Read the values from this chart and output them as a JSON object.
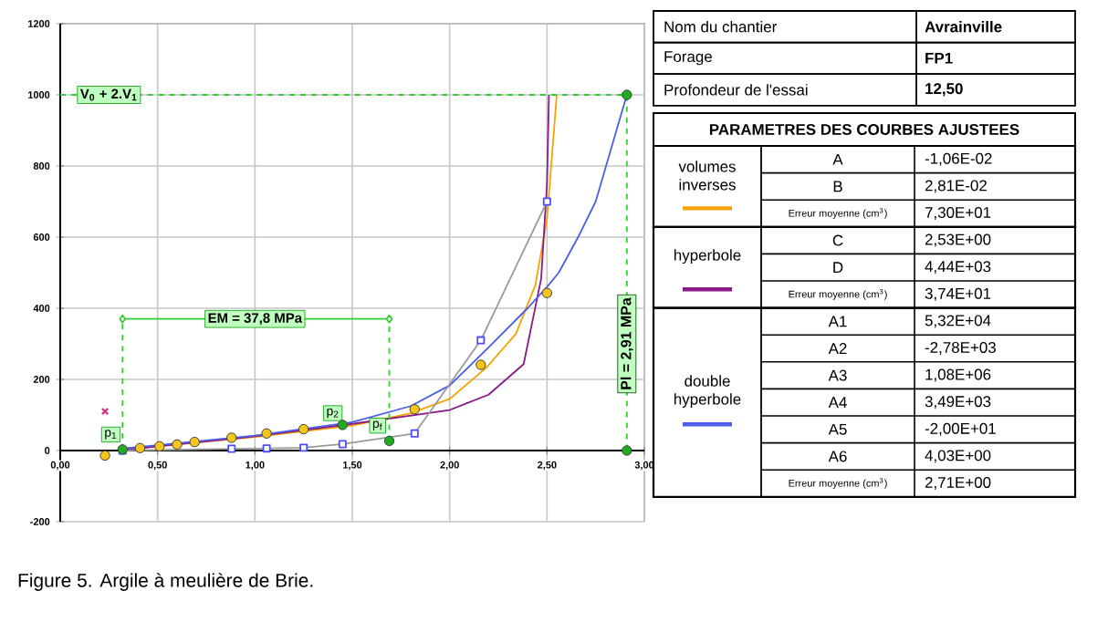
{
  "chart_data": [
    {
      "type": "line",
      "xlim": [
        0,
        3
      ],
      "ylim": [
        -200,
        1200
      ],
      "xticks": [
        {
          "value": 0,
          "label": "0,00"
        },
        {
          "value": 0.5,
          "label": "0,50"
        },
        {
          "value": 1,
          "label": "1,00"
        },
        {
          "value": 1.5,
          "label": "1,50"
        },
        {
          "value": 2,
          "label": "2,00"
        },
        {
          "value": 2.5,
          "label": "2,50"
        },
        {
          "value": 3,
          "label": "3,00"
        }
      ],
      "yticks": [
        -200,
        0,
        200,
        400,
        600,
        800,
        1000,
        1200
      ],
      "grid": true,
      "series": [
        {
          "type": "line",
          "marker": "none",
          "color": "#f4a300",
          "x": [
            0.3,
            0.5,
            1.0,
            1.5,
            1.8,
            2.0,
            2.19,
            2.34,
            2.44,
            2.5,
            2.55
          ],
          "values": [
            0,
            12,
            38,
            70,
            105,
            145,
            234,
            328,
            465,
            650,
            1000
          ]
        },
        {
          "type": "line",
          "marker": "none",
          "color": "#8b1a89",
          "x": [
            0.3,
            0.5,
            1.0,
            1.5,
            2.0,
            2.2,
            2.38,
            2.47,
            2.5,
            2.51
          ],
          "values": [
            0,
            12,
            40,
            75,
            114,
            157,
            243,
            483,
            750,
            1000
          ]
        },
        {
          "type": "line",
          "marker": "none",
          "color": "#4a5ee8",
          "x": [
            0.3,
            0.5,
            1.0,
            1.5,
            1.8,
            2.0,
            2.2,
            2.4,
            2.5,
            2.56,
            2.66,
            2.75,
            2.91
          ],
          "values": [
            5,
            15,
            42,
            80,
            125,
            183,
            290,
            400,
            460,
            500,
            600,
            700,
            1000
          ]
        },
        {
          "type": "line",
          "marker": "square",
          "color": "#9a9a9a",
          "x": [
            0.32,
            0.88,
            1.06,
            1.25,
            1.45,
            1.82,
            2.16,
            2.5
          ],
          "values": [
            0,
            5,
            6,
            8,
            18,
            48,
            310,
            700
          ]
        },
        {
          "type": "scatter",
          "marker": "circle",
          "color": "#f5c518",
          "x": [
            0.23,
            0.32,
            0.41,
            0.51,
            0.6,
            0.69,
            0.88,
            1.06,
            1.25,
            1.45,
            1.82,
            2.16,
            2.5
          ],
          "values": [
            -14,
            null,
            7,
            12,
            17,
            24,
            36,
            48,
            60,
            null,
            116,
            241,
            443
          ]
        },
        {
          "type": "scatter",
          "marker": "cross",
          "color": "#d6338a",
          "x": [
            0.23
          ],
          "values": [
            110
          ]
        },
        {
          "type": "line",
          "marker": "none",
          "line_style": "dashed",
          "color": "#33cc33",
          "x": [
            0,
            2.91,
            2.91
          ],
          "values": [
            1000,
            1000,
            0
          ]
        },
        {
          "type": "line",
          "marker": "diamond",
          "color": "#33cc33",
          "x": [
            0.32,
            1.69
          ],
          "values": [
            370,
            370
          ]
        },
        {
          "type": "line",
          "marker": "none",
          "line_style": "dashed",
          "color": "#33cc33",
          "x": [
            0.32,
            0.32
          ],
          "values": [
            3,
            370
          ]
        },
        {
          "type": "line",
          "marker": "none",
          "line_style": "dashed",
          "color": "#33cc33",
          "x": [
            1.69,
            1.69
          ],
          "values": [
            27,
            370
          ]
        },
        {
          "type": "scatter",
          "marker": "circle",
          "color": "#22aa22",
          "x": [
            0.32,
            1.45,
            1.69,
            2.91,
            2.91
          ],
          "values": [
            3,
            72,
            27,
            1000,
            0
          ]
        }
      ],
      "annotations": [
        {
          "text": "V$_{0}$ + 2.V$_{1}$",
          "x": 0.25,
          "y": 1000
        },
        {
          "text": "EM = 37,8 MPa",
          "x": 1.0,
          "y": 370
        },
        {
          "text": "p$_{1}$",
          "x": 0.26,
          "y": 45
        },
        {
          "text": "p$_{2}$",
          "x": 1.4,
          "y": 105
        },
        {
          "text": "p$_{f}$",
          "x": 1.63,
          "y": 70
        },
        {
          "text": "Pl = 2,91 MPa",
          "x": 2.91,
          "y": 300
        },
        "Figure 5. Argile à meulière de Brie."
      ]
    },
    {
      "type": "other",
      "annotations": [
        "Nom du chantier",
        "Avrainville",
        "Forage",
        "FP1",
        "Profondeur de l'essai",
        "12,50",
        "PARAMETRES DES COURBES AJUSTEES",
        "volumes inverses",
        "A",
        "-1,06E-02",
        "B",
        "2,81E-02",
        "Erreur moyenne (cm$^{3}$)",
        "7,30E+01",
        "hyperbole",
        "C",
        "2,53E+00",
        "D",
        "4,44E+03",
        "Erreur moyenne (cm$^{3}$)",
        "3,74E+01",
        "double hyperbole",
        "A1",
        "5,32E+04",
        "A2",
        "-2,78E+03",
        "A3",
        "1,08E+06",
        "A4",
        "3,49E+03",
        "A5",
        "-2,00E+01",
        "A6",
        "4,03E+00",
        "Erreur moyenne (cm$^{3}$)",
        "2,71E+00"
      ]
    }
  ]
}
